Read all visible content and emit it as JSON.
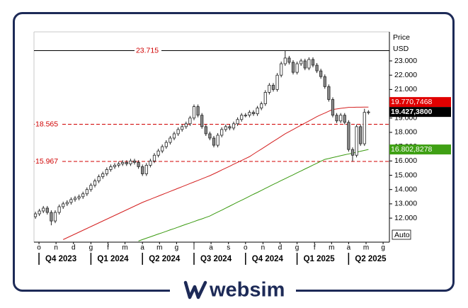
{
  "branding": "websim",
  "chart_data": {
    "type": "candlestick",
    "y_axis_title": "Price",
    "y_axis_unit": "USD",
    "auto_button": "Auto",
    "xlim": [
      -0.36,
      89.29
    ],
    "ylim": [
      10320,
      25030
    ],
    "yticks": [
      {
        "value": 12000,
        "label": "12.000"
      },
      {
        "value": 13000,
        "label": "13.000"
      },
      {
        "value": 14000,
        "label": "14.000"
      },
      {
        "value": 15000,
        "label": "15.000"
      },
      {
        "value": 16000,
        "label": "16.000"
      },
      {
        "value": 17000,
        "label": "17.000"
      },
      {
        "value": 18000,
        "label": "18.000"
      },
      {
        "value": 19000,
        "label": "19.000"
      },
      {
        "value": 20000,
        "label": "20.000"
      },
      {
        "value": 21000,
        "label": "21.000"
      },
      {
        "value": 22000,
        "label": "22.000"
      },
      {
        "value": 23000,
        "label": "23.000"
      }
    ],
    "xticks": [
      {
        "value": 0.9,
        "label": "o"
      },
      {
        "value": 5.2,
        "label": "n"
      },
      {
        "value": 9.6,
        "label": "d"
      },
      {
        "value": 14,
        "label": "g"
      },
      {
        "value": 18.3,
        "label": "f"
      },
      {
        "value": 22.6,
        "label": "m"
      },
      {
        "value": 27,
        "label": "a"
      },
      {
        "value": 31.3,
        "label": "m"
      },
      {
        "value": 35.6,
        "label": "g"
      },
      {
        "value": 40,
        "label": "l"
      },
      {
        "value": 44.3,
        "label": "a"
      },
      {
        "value": 48.7,
        "label": "s"
      },
      {
        "value": 53,
        "label": "o"
      },
      {
        "value": 57.4,
        "label": "n"
      },
      {
        "value": 61.7,
        "label": "d"
      },
      {
        "value": 66,
        "label": "g"
      },
      {
        "value": 70.4,
        "label": "f"
      },
      {
        "value": 74.7,
        "label": "m"
      },
      {
        "value": 79,
        "label": "a"
      },
      {
        "value": 83.4,
        "label": "m"
      },
      {
        "value": 87.7,
        "label": "g"
      }
    ],
    "quarters": [
      {
        "value": 0.9,
        "label": "Q4 2023"
      },
      {
        "value": 14,
        "label": "Q1 2024"
      },
      {
        "value": 27,
        "label": "Q2 2024"
      },
      {
        "value": 40,
        "label": "Q3 2024"
      },
      {
        "value": 53,
        "label": "Q4 2024"
      },
      {
        "value": 66,
        "label": "Q1 2025"
      },
      {
        "value": 79,
        "label": "Q2 2025"
      }
    ],
    "hlines": [
      {
        "value": 23715,
        "label": "23.715",
        "color": "#000000",
        "label_color": "#d00000",
        "dashed": false,
        "label_at": "center"
      },
      {
        "value": 18565,
        "label": "18.565",
        "color": "#d00000",
        "label_color": "#d00000",
        "dashed": true,
        "label_at": "left"
      },
      {
        "value": 15967,
        "label": "15.967",
        "color": "#d00000",
        "label_color": "#d00000",
        "dashed": true,
        "label_at": "left"
      }
    ],
    "last_price": {
      "value": 19427.38,
      "label": "19.427,3800",
      "color": "#000000"
    },
    "open": [
      12100,
      12300,
      12500,
      12700,
      12400,
      11800,
      12400,
      12800,
      13000,
      13100,
      13300,
      13400,
      13500,
      13700,
      14000,
      14300,
      14600,
      14900,
      15100,
      15400,
      15600,
      15700,
      15800,
      15900,
      15800,
      16000,
      15900,
      15600,
      15100,
      15700,
      16000,
      16400,
      16700,
      17000,
      17300,
      17600,
      17900,
      18200,
      18400,
      18600,
      19000,
      19800,
      19200,
      18400,
      17900,
      17600,
      17100,
      17800,
      18200,
      18400,
      18300,
      18600,
      18900,
      19200,
      19200,
      19400,
      19300,
      19700,
      20000,
      20800,
      21300,
      21000,
      22000,
      22800,
      23200,
      22900,
      22200,
      22800,
      23000,
      22500,
      23100,
      22700,
      22300,
      21900,
      21200,
      20300,
      19200,
      18800,
      19200,
      18700,
      16800,
      16400,
      18400,
      17200,
      19400
    ],
    "high": [
      12450,
      12650,
      12850,
      12850,
      12550,
      12550,
      12950,
      13150,
      13250,
      13450,
      13550,
      13650,
      13850,
      14150,
      14450,
      14750,
      15050,
      15250,
      15550,
      15750,
      15850,
      15950,
      16050,
      16050,
      16150,
      16150,
      16050,
      15750,
      15850,
      16150,
      16550,
      16850,
      17150,
      17450,
      17750,
      18050,
      18350,
      18550,
      18750,
      19150,
      19950,
      19950,
      19350,
      18550,
      18050,
      17750,
      17950,
      18350,
      18550,
      18550,
      18750,
      19050,
      19350,
      19350,
      19550,
      19550,
      19850,
      20150,
      20950,
      21450,
      21450,
      22150,
      22950,
      23715,
      23350,
      23050,
      22950,
      23150,
      23150,
      23250,
      23250,
      22850,
      22450,
      22050,
      21350,
      20450,
      19350,
      19350,
      19350,
      18850,
      16950,
      18550,
      18550,
      19650,
      19550
    ],
    "low": [
      11950,
      12150,
      12350,
      12250,
      11500,
      11650,
      12250,
      12650,
      12850,
      12950,
      13150,
      13250,
      13350,
      13550,
      13850,
      14150,
      14450,
      14750,
      14950,
      15250,
      15450,
      15550,
      15650,
      15650,
      15650,
      15750,
      15450,
      14950,
      14950,
      15550,
      15850,
      16250,
      16550,
      16850,
      17150,
      17450,
      17750,
      18050,
      18250,
      18450,
      18850,
      19050,
      18250,
      17750,
      17450,
      16950,
      16950,
      17650,
      18050,
      18150,
      18150,
      18450,
      18750,
      19050,
      19050,
      19150,
      19150,
      19550,
      19850,
      20650,
      20850,
      20850,
      21850,
      22650,
      22750,
      22050,
      22050,
      22650,
      22350,
      22350,
      22550,
      22150,
      21750,
      21050,
      20150,
      19050,
      18650,
      18650,
      18550,
      16650,
      15967,
      16250,
      17050,
      17050,
      19250
    ],
    "close": [
      12300,
      12500,
      12700,
      12400,
      11800,
      12400,
      12800,
      13000,
      13100,
      13300,
      13400,
      13500,
      13700,
      14000,
      14300,
      14600,
      14900,
      15100,
      15400,
      15600,
      15700,
      15800,
      15900,
      15800,
      16000,
      15900,
      15600,
      15100,
      15700,
      16000,
      16400,
      16700,
      17000,
      17300,
      17600,
      17900,
      18200,
      18400,
      18600,
      19000,
      19800,
      19200,
      18400,
      17900,
      17600,
      17100,
      17800,
      18200,
      18400,
      18300,
      18600,
      18900,
      19200,
      19200,
      19400,
      19300,
      19700,
      20000,
      20800,
      21300,
      21000,
      22000,
      22800,
      23200,
      22900,
      22200,
      22800,
      23000,
      22500,
      23100,
      22700,
      22300,
      21900,
      21200,
      20300,
      19200,
      18800,
      19200,
      18700,
      16800,
      16400,
      18400,
      17200,
      19400,
      19427.38
    ],
    "up_color": "#ffffff",
    "down_color": "#8c8c8c",
    "wick_color": "#222222",
    "series": [
      {
        "color": "#d42020",
        "last_value_label": "19.770,7468",
        "tag_color": "#e00000",
        "values": [
          null,
          null,
          null,
          null,
          null,
          null,
          null,
          10500,
          10630,
          10760,
          10890,
          11020,
          11150,
          11280,
          11410,
          11540,
          11670,
          11800,
          11930,
          12060,
          12190,
          12320,
          12450,
          12580,
          12710,
          12840,
          12970,
          13100,
          13210,
          13320,
          13430,
          13540,
          13650,
          13760,
          13870,
          13980,
          14090,
          14200,
          14310,
          14420,
          14530,
          14640,
          14750,
          14860,
          14970,
          15100,
          15230,
          15370,
          15500,
          15630,
          15770,
          15900,
          16030,
          16170,
          16300,
          16480,
          16660,
          16830,
          17010,
          17190,
          17370,
          17540,
          17720,
          17900,
          18050,
          18200,
          18350,
          18500,
          18650,
          18800,
          18950,
          19100,
          19230,
          19350,
          19480,
          19600,
          19640,
          19680,
          19710,
          19750,
          19750,
          19760,
          19760,
          19770,
          19770.7468
        ]
      },
      {
        "color": "#3a9a10",
        "last_value_label": "16.802,8278",
        "tag_color": "#3fa014",
        "values": [
          null,
          null,
          null,
          null,
          null,
          null,
          null,
          null,
          null,
          null,
          null,
          null,
          null,
          null,
          null,
          null,
          null,
          null,
          null,
          null,
          null,
          null,
          null,
          null,
          null,
          null,
          10400,
          10500,
          10600,
          10690,
          10790,
          10890,
          10980,
          11080,
          11180,
          11270,
          11370,
          11470,
          11570,
          11660,
          11760,
          11860,
          11950,
          12050,
          12150,
          12290,
          12430,
          12560,
          12700,
          12840,
          12980,
          13120,
          13250,
          13390,
          13530,
          13670,
          13800,
          13940,
          14080,
          14220,
          14360,
          14490,
          14630,
          14760,
          14900,
          15030,
          15170,
          15300,
          15440,
          15570,
          15710,
          15840,
          15980,
          16110,
          16170,
          16240,
          16300,
          16370,
          16430,
          16490,
          16550,
          16610,
          16680,
          16740,
          16802.8278
        ]
      }
    ]
  }
}
